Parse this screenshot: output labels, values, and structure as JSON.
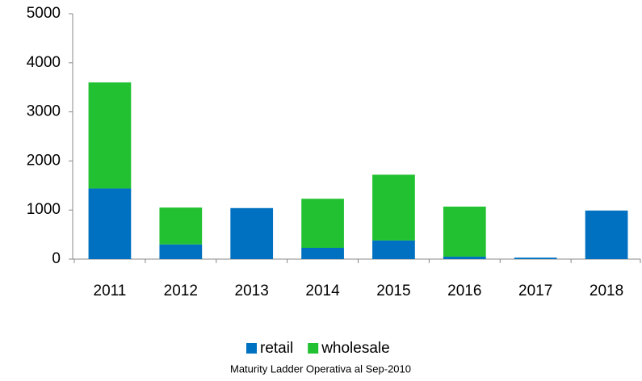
{
  "chart_data": {
    "type": "stacked_bar",
    "caption": "Maturity Ladder Operativa al Sep-2010",
    "categories": [
      "2011",
      "2012",
      "2013",
      "2014",
      "2015",
      "2016",
      "2017",
      "2018"
    ],
    "series": [
      {
        "name": "retail",
        "color": "#0070c0",
        "values": [
          1440,
          300,
          1040,
          230,
          380,
          50,
          30,
          990
        ]
      },
      {
        "name": "wholesale",
        "color": "#22c132",
        "values": [
          2160,
          750,
          0,
          1000,
          1340,
          1020,
          0,
          0
        ]
      }
    ],
    "ylim": [
      0,
      5000
    ],
    "yticks": [
      0,
      1000,
      2000,
      3000,
      4000,
      5000
    ],
    "grid": false,
    "legend": "bottom"
  }
}
